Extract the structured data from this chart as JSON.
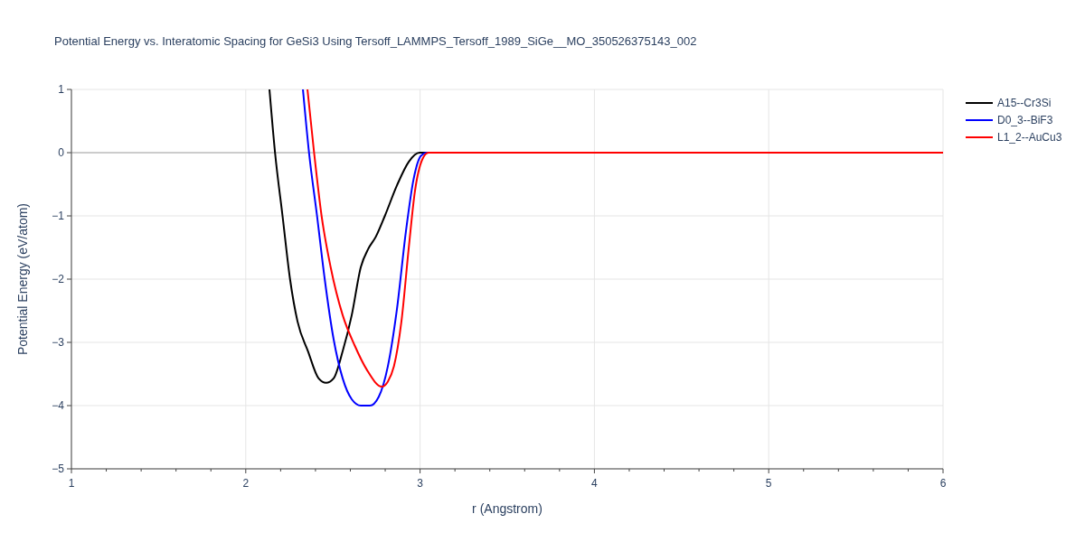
{
  "chart_data": {
    "type": "line",
    "title": "Potential Energy vs. Interatomic Spacing for GeSi3 Using Tersoff_LAMMPS_Tersoff_1989_SiGe__MO_350526375143_002",
    "xlabel": "r (Angstrom)",
    "ylabel": "Potential Energy (eV/atom)",
    "xlim": [
      1,
      6
    ],
    "ylim": [
      -5,
      1
    ],
    "xticks": [
      1,
      {
        "value": 1.2,
        "label": null
      },
      {
        "value": 1.4,
        "label": null
      },
      {
        "value": 1.6,
        "label": null
      },
      {
        "value": 1.8,
        "label": null
      },
      2,
      {
        "value": 2.2,
        "label": null
      },
      {
        "value": 2.4,
        "label": null
      },
      {
        "value": 2.6,
        "label": null
      },
      {
        "value": 2.8,
        "label": null
      },
      3,
      {
        "value": 3.2,
        "label": null
      },
      {
        "value": 3.4,
        "label": null
      },
      {
        "value": 3.6,
        "label": null
      },
      {
        "value": 3.8,
        "label": null
      },
      4,
      {
        "value": 4.2,
        "label": null
      },
      {
        "value": 4.4,
        "label": null
      },
      {
        "value": 4.6,
        "label": null
      },
      {
        "value": 4.8,
        "label": null
      },
      5,
      {
        "value": 5.2,
        "label": null
      },
      {
        "value": 5.4,
        "label": null
      },
      {
        "value": 5.6,
        "label": null
      },
      {
        "value": 5.8,
        "label": null
      },
      6
    ],
    "yticks": [
      {
        "value": -5,
        "label": "−5"
      },
      {
        "value": -4,
        "label": "−4"
      },
      {
        "value": -3,
        "label": "−3"
      },
      {
        "value": -2,
        "label": "−2"
      },
      {
        "value": -1,
        "label": "−1"
      },
      0,
      1
    ],
    "grid": true,
    "legend": "top right",
    "marker": "none",
    "line_style": "solid",
    "series": [
      {
        "name": "A15--Cr3Si",
        "color": "#000000",
        "x": [
          2.136,
          2.168,
          2.211,
          2.254,
          2.297,
          2.357,
          2.418,
          2.461,
          2.504,
          2.556,
          2.608,
          2.66,
          2.703,
          2.746,
          2.798,
          2.867,
          2.936,
          2.997,
          6
        ],
        "values": [
          1,
          0,
          -1,
          -2,
          -2.67,
          -3.14,
          -3.57,
          -3.64,
          -3.57,
          -3.14,
          -2.57,
          -1.81,
          -1.52,
          -1.33,
          -1,
          -0.52,
          -0.14,
          0,
          0
        ]
      },
      {
        "name": "D0_3--BiF3",
        "color": "#0000ff",
        "x": [
          2.328,
          2.363,
          2.409,
          2.453,
          2.504,
          2.556,
          2.608,
          2.66,
          2.712,
          2.763,
          2.815,
          2.867,
          2.919,
          2.962,
          3.005,
          3.04,
          6
        ],
        "values": [
          1,
          0,
          -1,
          -2,
          -2.95,
          -3.57,
          -3.9,
          -4,
          -4,
          -3.86,
          -3.38,
          -2.48,
          -1.24,
          -0.43,
          -0.05,
          0,
          0
        ]
      },
      {
        "name": "L1_2--AuCu3",
        "color": "#ff0000",
        "x": [
          2.354,
          2.392,
          2.435,
          2.487,
          2.556,
          2.625,
          2.694,
          2.781,
          2.815,
          2.85,
          2.893,
          2.936,
          2.97,
          3.014,
          3.048,
          6
        ],
        "values": [
          1,
          0,
          -1,
          -1.81,
          -2.57,
          -3.05,
          -3.43,
          -3.7,
          -3.62,
          -3.38,
          -2.67,
          -1.48,
          -0.62,
          -0.1,
          0,
          0
        ]
      }
    ]
  }
}
